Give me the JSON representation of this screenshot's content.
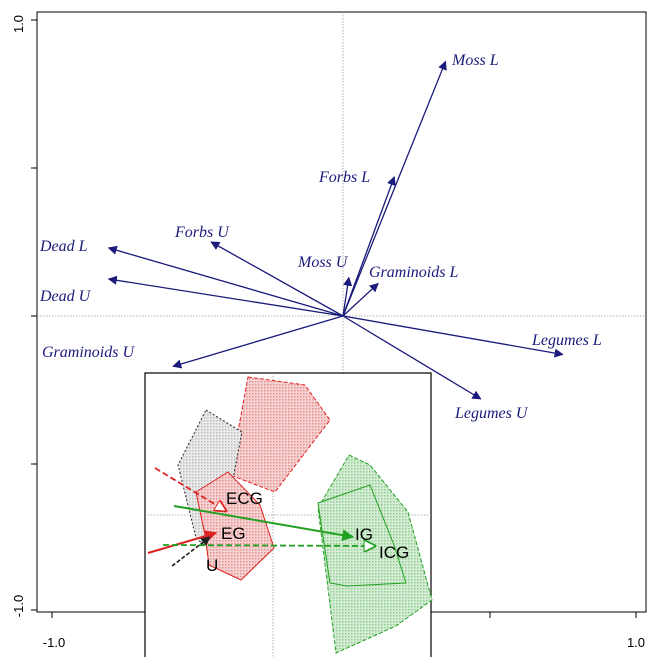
{
  "chart_data": [
    {
      "type": "biplot",
      "xlim": [
        -1.0,
        1.0
      ],
      "ylim": [
        -1.0,
        1.0
      ],
      "x_tick_labels": [
        "-1.0",
        "1.0"
      ],
      "y_tick_labels": [
        "1.0",
        "-1.0"
      ],
      "zero_lines": true,
      "arrow_color": "#1a1a7a",
      "arrows": [
        {
          "label": "Moss L",
          "x": 0.35,
          "y": 0.86
        },
        {
          "label": "Forbs L",
          "x": 0.175,
          "y": 0.47
        },
        {
          "label": "Forbs U",
          "x": -0.45,
          "y": 0.25
        },
        {
          "label": "Dead L",
          "x": -0.8,
          "y": 0.23
        },
        {
          "label": "Dead U",
          "x": -0.8,
          "y": 0.125
        },
        {
          "label": "Moss U",
          "x": 0.02,
          "y": 0.13
        },
        {
          "label": "Graminoids L",
          "x": 0.12,
          "y": 0.11
        },
        {
          "label": "Graminoids U",
          "x": -0.58,
          "y": -0.17
        },
        {
          "label": "Legumes L",
          "x": 0.75,
          "y": -0.13
        },
        {
          "label": "Legumes U",
          "x": 0.47,
          "y": -0.28
        }
      ]
    },
    {
      "type": "ordination-inset",
      "colors": {
        "red": "#dd2222",
        "green": "#22a022",
        "black": "#222222",
        "red_fill": "#e89090",
        "green_fill": "#8fcf8f",
        "grey_fill": "#bdbdbd"
      },
      "groups": [
        {
          "label": "U",
          "color": "black"
        },
        {
          "label": "EG",
          "color": "red"
        },
        {
          "label": "ECG",
          "color": "red"
        },
        {
          "label": "IG",
          "color": "green"
        },
        {
          "label": "ICG",
          "color": "green"
        }
      ]
    }
  ]
}
